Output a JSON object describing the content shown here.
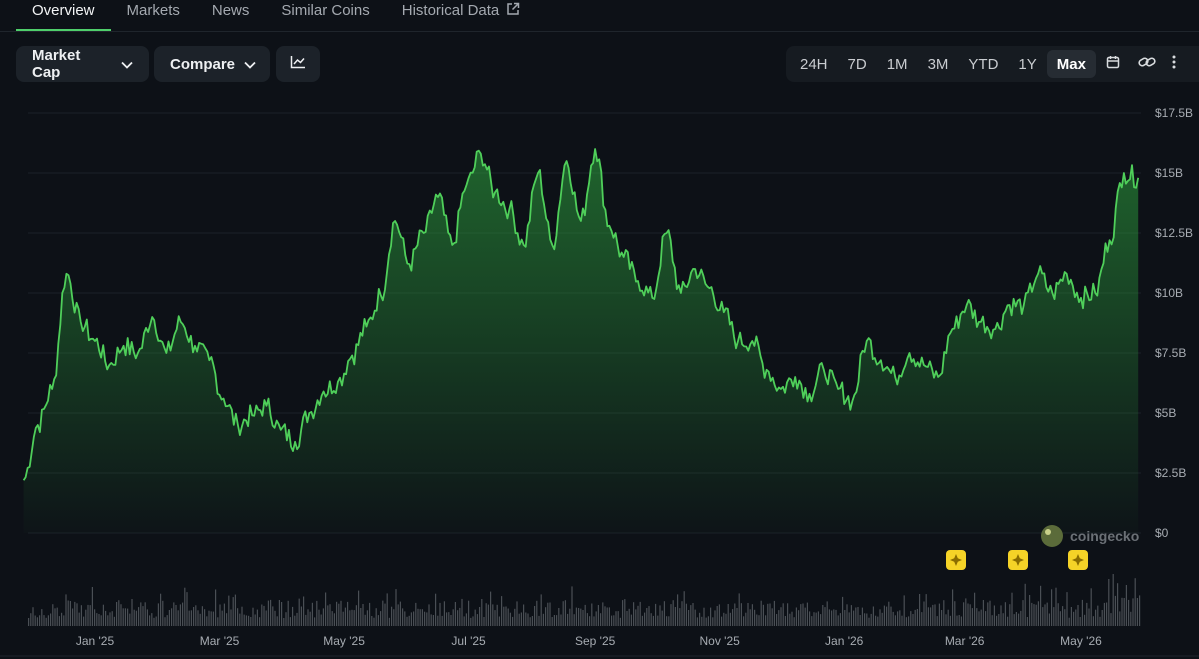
{
  "tabs": [
    {
      "label": "Overview",
      "active": true
    },
    {
      "label": "Markets",
      "active": false
    },
    {
      "label": "News",
      "active": false
    },
    {
      "label": "Similar Coins",
      "active": false
    },
    {
      "label": "Historical Data",
      "active": false,
      "icon": "external-link-icon"
    }
  ],
  "toolbar": {
    "metric_label": "Market Cap",
    "compare_label": "Compare",
    "chart_type_icon": "line-chart-icon",
    "ranges": [
      "24H",
      "7D",
      "1M",
      "3M",
      "YTD",
      "1Y",
      "Max"
    ],
    "active_range": "Max",
    "icons": [
      "calendar-icon",
      "link-icon",
      "more-vertical-icon"
    ]
  },
  "watermark": "coingecko",
  "colors": {
    "line": "#4fcf5a",
    "background": "#0d1117",
    "grid": "#1b2128",
    "volume": "#4a4f55",
    "event": "#f5d327"
  },
  "chart_data": {
    "type": "area",
    "x_ticks": [
      "Jan '25",
      "Mar '25",
      "May '25",
      "Jul '25",
      "Sep '25",
      "Nov '25",
      "Jan '26",
      "Mar '26",
      "May '26"
    ],
    "y_ticks": [
      "$0",
      "$2.5B",
      "$5B",
      "$7.5B",
      "$10B",
      "$12.5B",
      "$15B",
      "$17.5B"
    ],
    "ylim": [
      0,
      17.5
    ],
    "y_unit": "B USD",
    "x": [
      "2024-12-02",
      "2024-12-09",
      "2024-12-16",
      "2024-12-23",
      "2024-12-30",
      "2025-01-06",
      "2025-01-13",
      "2025-01-20",
      "2025-01-27",
      "2025-02-03",
      "2025-02-10",
      "2025-02-17",
      "2025-02-24",
      "2025-03-03",
      "2025-03-10",
      "2025-03-17",
      "2025-03-24",
      "2025-03-31",
      "2025-04-07",
      "2025-04-14",
      "2025-04-21",
      "2025-04-28",
      "2025-05-05",
      "2025-05-12",
      "2025-05-19",
      "2025-05-26",
      "2025-06-02",
      "2025-06-09",
      "2025-06-16",
      "2025-06-23",
      "2025-06-30",
      "2025-07-07",
      "2025-07-14",
      "2025-07-21",
      "2025-07-28",
      "2025-08-04",
      "2025-08-11",
      "2025-08-18",
      "2025-08-25",
      "2025-09-01",
      "2025-09-08",
      "2025-09-15",
      "2025-09-22",
      "2025-09-29",
      "2025-10-06",
      "2025-10-13",
      "2025-10-20",
      "2025-10-27",
      "2025-11-03",
      "2025-11-10",
      "2025-11-17",
      "2025-11-24",
      "2025-12-01",
      "2025-12-08",
      "2025-12-15",
      "2025-12-22",
      "2025-12-29",
      "2026-01-05",
      "2026-01-12",
      "2026-01-19",
      "2026-01-26",
      "2026-02-02",
      "2026-02-09",
      "2026-02-16",
      "2026-02-23",
      "2026-03-02",
      "2026-03-09",
      "2026-03-16",
      "2026-03-23",
      "2026-03-30",
      "2026-04-06",
      "2026-04-13",
      "2026-04-20",
      "2026-04-27",
      "2026-05-04",
      "2026-05-11",
      "2026-05-18",
      "2026-05-25",
      "2026-06-01"
    ],
    "series": [
      {
        "values": [
          2.2,
          4.5,
          6.0,
          10.8,
          8.8,
          8.0,
          7.0,
          7.8,
          7.5,
          9.0,
          7.5,
          8.8,
          7.8,
          7.2,
          5.6,
          4.5,
          4.9,
          5.3,
          4.3,
          3.8,
          5.0,
          5.9,
          6.3,
          7.4,
          8.6,
          9.9,
          13.0,
          11.2,
          12.5,
          14.0,
          12.0,
          14.5,
          15.8,
          14.2,
          13.5,
          12.0,
          15.0,
          12.0,
          15.5,
          13.0,
          16.0,
          12.8,
          11.5,
          10.5,
          9.8,
          12.5,
          10.0,
          11.0,
          10.2,
          9.2,
          8.0,
          8.0,
          6.8,
          6.0,
          6.5,
          5.8,
          6.8,
          6.0,
          5.5,
          8.0,
          7.2,
          6.5,
          7.5,
          7.0,
          6.5,
          8.5,
          9.5,
          8.8,
          8.5,
          9.5,
          9.5,
          10.8,
          10.0,
          10.8,
          9.8,
          10.0,
          12.2,
          15.0,
          14.8
        ]
      }
    ]
  }
}
